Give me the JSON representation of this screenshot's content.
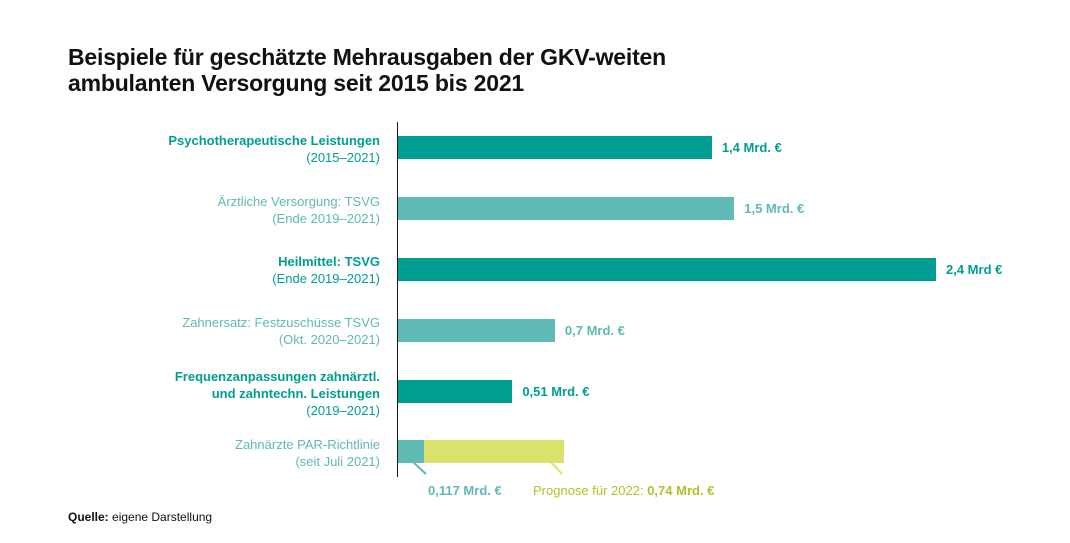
{
  "title": [
    "Beispiele für geschätzte Mehrausgaben der GKV-weiten",
    "ambulanten Versorgung seit 2015 bis 2021"
  ],
  "colors": {
    "dark": "#009e92",
    "light": "#5fb9b4",
    "forecast": "#d9e36b",
    "forecast_text": "#b5c02a"
  },
  "chart_data": {
    "type": "bar",
    "orientation": "horizontal",
    "unit": "Mrd. €",
    "categories": [
      {
        "lines": [
          "Psychotherapeutische Leistungen",
          "(2015–2021)"
        ],
        "style": "dark"
      },
      {
        "lines": [
          "Ärztliche Versorgung: TSVG",
          "(Ende 2019–2021)"
        ],
        "style": "light"
      },
      {
        "lines": [
          "Heilmittel: TSVG",
          "(Ende 2019–2021)"
        ],
        "style": "dark"
      },
      {
        "lines": [
          "Zahnersatz: Festzuschüsse TSVG",
          "(Okt. 2020–2021)"
        ],
        "style": "light"
      },
      {
        "lines": [
          "Frequenzanpassungen zahnärztl.",
          "und zahntechn. Leistungen",
          "(2019–2021)"
        ],
        "style": "dark"
      },
      {
        "lines": [
          "Zahnärzte PAR-Richtlinie",
          "(seit Juli 2021)"
        ],
        "style": "light"
      }
    ],
    "values": [
      1.4,
      1.5,
      2.4,
      0.7,
      0.51,
      0.117
    ],
    "value_labels": [
      "1,4 Mrd. €",
      "1,5 Mrd. €",
      "2,4 Mrd €",
      "0,7 Mrd. €",
      "0,51 Mrd. €",
      "0,117 Mrd. €"
    ],
    "forecast": {
      "category_index": 5,
      "value": 0.74,
      "label_prefix": "Prognose für 2022: ",
      "label_value": "0,74 Mrd. €"
    },
    "xlim": [
      0,
      2.4
    ]
  },
  "source": {
    "label": "Quelle:",
    "text": " eigene Darstellung"
  }
}
